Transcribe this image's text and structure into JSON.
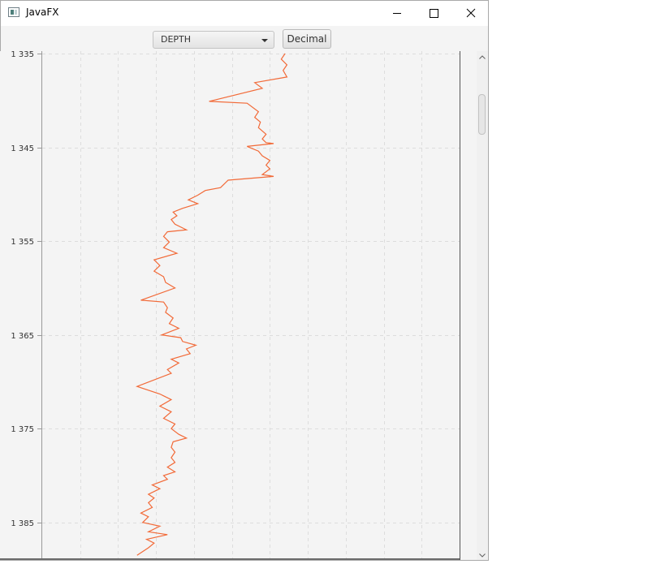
{
  "window": {
    "title": "JavaFX",
    "buttons": {
      "minimize": "minimize",
      "maximize": "maximize",
      "close": "close"
    }
  },
  "toolbar": {
    "combo_value": "DEPTH",
    "decimal_label": "Decimal"
  },
  "colors": {
    "series": "#f26a38",
    "grid": "#dddddd"
  },
  "chart_data": {
    "type": "line",
    "orientation": "vertical-depth",
    "grid": true,
    "y_reversed": true,
    "ylim": [
      1335,
      1389
    ],
    "xlim": [
      0,
      11
    ],
    "y_ticks": [
      1335,
      1345,
      1355,
      1365,
      1375,
      1385
    ],
    "y_tick_labels": [
      "1 335",
      "1 345",
      "1 355",
      "1 365",
      "1 375",
      "1 385"
    ],
    "x_grid_lines": [
      1,
      2,
      3,
      4,
      5,
      6,
      7,
      8,
      9,
      10
    ],
    "series": [
      {
        "points": [
          [
            6.4,
            1335.0
          ],
          [
            6.3,
            1335.6
          ],
          [
            6.45,
            1336.2
          ],
          [
            6.35,
            1336.8
          ],
          [
            6.45,
            1337.5
          ],
          [
            5.6,
            1338.1
          ],
          [
            5.8,
            1338.7
          ],
          [
            4.4,
            1340.1
          ],
          [
            5.4,
            1340.3
          ],
          [
            5.7,
            1341.2
          ],
          [
            5.6,
            1341.8
          ],
          [
            5.75,
            1342.3
          ],
          [
            5.7,
            1342.9
          ],
          [
            5.9,
            1343.6
          ],
          [
            5.8,
            1344.1
          ],
          [
            5.9,
            1344.5
          ],
          [
            6.1,
            1344.6
          ],
          [
            5.4,
            1344.9
          ],
          [
            5.7,
            1345.4
          ],
          [
            5.8,
            1345.9
          ],
          [
            6.0,
            1346.4
          ],
          [
            5.9,
            1346.9
          ],
          [
            6.0,
            1347.3
          ],
          [
            5.8,
            1347.9
          ],
          [
            6.1,
            1348.1
          ],
          [
            4.9,
            1348.5
          ],
          [
            4.7,
            1349.3
          ],
          [
            4.3,
            1349.6
          ],
          [
            4.1,
            1350.1
          ],
          [
            3.85,
            1350.6
          ],
          [
            4.1,
            1351.0
          ],
          [
            3.7,
            1351.5
          ],
          [
            3.45,
            1351.9
          ],
          [
            3.55,
            1352.3
          ],
          [
            3.4,
            1352.7
          ],
          [
            3.5,
            1353.2
          ],
          [
            3.8,
            1353.8
          ],
          [
            3.3,
            1354.0
          ],
          [
            3.2,
            1354.5
          ],
          [
            3.35,
            1355.1
          ],
          [
            3.2,
            1355.7
          ],
          [
            3.55,
            1356.3
          ],
          [
            2.95,
            1357.0
          ],
          [
            3.1,
            1357.6
          ],
          [
            2.95,
            1358.2
          ],
          [
            3.2,
            1358.8
          ],
          [
            3.25,
            1359.4
          ],
          [
            3.5,
            1360.0
          ],
          [
            2.6,
            1361.3
          ],
          [
            3.2,
            1361.5
          ],
          [
            3.3,
            1362.1
          ],
          [
            3.25,
            1362.6
          ],
          [
            3.45,
            1363.2
          ],
          [
            3.35,
            1363.8
          ],
          [
            3.6,
            1364.3
          ],
          [
            3.15,
            1365.0
          ],
          [
            3.65,
            1365.3
          ],
          [
            3.7,
            1365.7
          ],
          [
            4.05,
            1366.1
          ],
          [
            3.8,
            1366.5
          ],
          [
            3.9,
            1367.0
          ],
          [
            3.4,
            1367.6
          ],
          [
            3.6,
            1368.0
          ],
          [
            3.3,
            1368.7
          ],
          [
            3.4,
            1369.1
          ],
          [
            2.5,
            1370.5
          ],
          [
            3.1,
            1371.3
          ],
          [
            3.2,
            1371.5
          ],
          [
            3.4,
            1371.9
          ],
          [
            3.1,
            1372.6
          ],
          [
            3.4,
            1373.2
          ],
          [
            3.2,
            1373.9
          ],
          [
            3.5,
            1374.5
          ],
          [
            3.4,
            1375.0
          ],
          [
            3.6,
            1375.6
          ],
          [
            3.8,
            1376.0
          ],
          [
            3.45,
            1376.4
          ],
          [
            3.4,
            1377.0
          ],
          [
            3.5,
            1377.5
          ],
          [
            3.4,
            1378.1
          ],
          [
            3.5,
            1378.6
          ],
          [
            3.3,
            1379.1
          ],
          [
            3.5,
            1379.6
          ],
          [
            3.2,
            1380.0
          ],
          [
            3.3,
            1380.4
          ],
          [
            2.9,
            1381.0
          ],
          [
            3.1,
            1381.4
          ],
          [
            2.8,
            1382.0
          ],
          [
            2.95,
            1382.4
          ],
          [
            2.8,
            1382.9
          ],
          [
            2.9,
            1383.4
          ],
          [
            2.6,
            1384.0
          ],
          [
            2.8,
            1384.4
          ],
          [
            2.65,
            1385.0
          ],
          [
            3.1,
            1385.4
          ],
          [
            2.8,
            1386.0
          ],
          [
            3.3,
            1386.3
          ],
          [
            2.75,
            1386.8
          ],
          [
            2.95,
            1387.2
          ],
          [
            2.8,
            1387.7
          ],
          [
            2.5,
            1388.5
          ]
        ]
      }
    ]
  }
}
